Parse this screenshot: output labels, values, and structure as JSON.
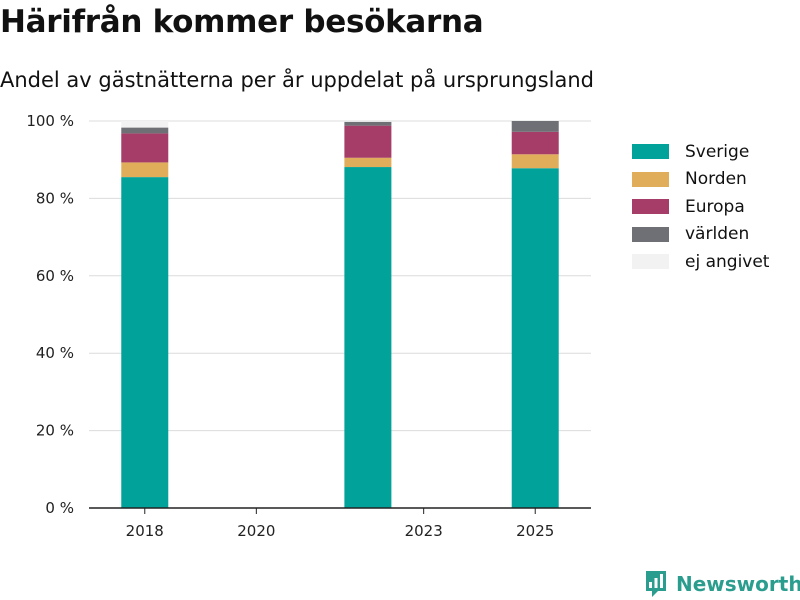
{
  "header": {
    "title": "Härifrån kommer besökarna",
    "subtitle": "Andel av gästnätterna per år uppdelat på ursprungsland"
  },
  "logo": {
    "text": "Newsworthy",
    "icon": "newsworthy-chart-icon"
  },
  "colors": {
    "Sverige": "#00a29a",
    "Norden": "#e0ad5a",
    "Europa": "#a63d68",
    "världen": "#6f6f76",
    "ej angivet": "#f2f2f2"
  },
  "chart_data": {
    "type": "bar",
    "stacked": true,
    "title": "Härifrån kommer besökarna",
    "subtitle": "Andel av gästnätterna per år uppdelat på ursprungsland",
    "x_tick_labels": [
      "2018",
      "2020",
      "2023",
      "2025"
    ],
    "x_range": [
      2017,
      2026
    ],
    "bars": [
      {
        "x": 2018,
        "values": {
          "Sverige": 85.5,
          "Norden": 3.8,
          "Europa": 7.5,
          "världen": 1.5,
          "ej angivet": 1.7
        }
      },
      {
        "x": 2022,
        "values": {
          "Sverige": 88.1,
          "Norden": 2.4,
          "Europa": 8.3,
          "världen": 1.0,
          "ej angivet": 0.2
        }
      },
      {
        "x": 2025,
        "values": {
          "Sverige": 87.8,
          "Norden": 3.6,
          "Europa": 5.8,
          "världen": 2.8,
          "ej angivet": 0.0
        }
      }
    ],
    "series": [
      "Sverige",
      "Norden",
      "Europa",
      "världen",
      "ej angivet"
    ],
    "y_ticks": [
      "0 %",
      "20 %",
      "40 %",
      "60 %",
      "80 %",
      "100 %"
    ],
    "ylim": [
      0,
      100
    ],
    "grid": true,
    "legend_position": "right"
  }
}
